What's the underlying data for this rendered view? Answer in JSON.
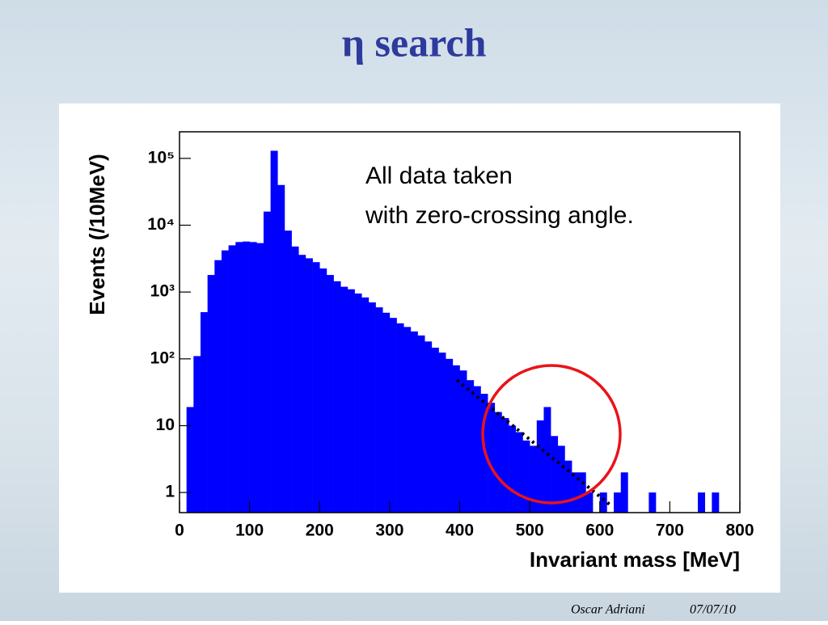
{
  "slide": {
    "title": "η search",
    "author": "Oscar Adriani",
    "date": "07/07/10"
  },
  "chart_data": {
    "type": "histogram",
    "x_label": "Invariant mass [MeV]",
    "y_label": "Events (/10MeV)",
    "annotation": [
      "All data taken",
      "with zero-crossing angle."
    ],
    "color": "#0000ff",
    "bins": [
      0,
      10,
      20,
      30,
      40,
      50,
      60,
      70,
      80,
      90,
      100,
      110,
      120,
      130,
      140,
      150,
      160,
      170,
      180,
      190,
      200,
      210,
      220,
      230,
      240,
      250,
      260,
      270,
      280,
      290,
      300,
      310,
      320,
      330,
      340,
      350,
      360,
      370,
      380,
      390,
      400,
      410,
      420,
      430,
      440,
      450,
      460,
      470,
      480,
      490,
      500,
      510,
      520,
      530,
      540,
      550,
      560,
      570,
      580,
      590,
      600,
      610,
      620,
      630,
      640,
      650,
      660,
      670,
      680,
      690,
      700,
      710,
      720,
      730,
      740,
      750,
      760,
      770,
      780,
      790,
      800
    ],
    "values": [
      0,
      19,
      110,
      500,
      1800,
      3000,
      4200,
      5000,
      5600,
      5700,
      5600,
      5400,
      16000,
      130000,
      40000,
      8300,
      4800,
      3600,
      3200,
      2800,
      2250,
      1800,
      1450,
      1200,
      1100,
      950,
      830,
      700,
      590,
      490,
      410,
      340,
      300,
      257,
      224,
      182,
      147,
      124,
      100,
      80,
      67,
      48,
      39,
      30,
      22,
      16,
      13,
      10,
      8,
      6,
      5,
      12,
      19,
      7,
      5,
      3,
      2,
      2,
      1,
      0,
      1,
      0,
      1,
      2,
      0,
      0,
      0,
      1,
      0,
      0,
      0,
      0,
      0,
      0,
      1,
      0,
      1,
      0,
      0,
      0
    ],
    "fit": {
      "x": [
        396,
        615
      ],
      "values": [
        48,
        0.65
      ],
      "color": "#000000"
    },
    "xlim": [
      0,
      800
    ],
    "xticks": [
      0,
      100,
      200,
      300,
      400,
      500,
      600,
      700,
      800
    ],
    "ylim": [
      0.5,
      250000
    ],
    "ylog": true,
    "yticks": [
      1,
      10,
      {
        "value": 100,
        "label": "10²"
      },
      {
        "value": 1000,
        "label": "10³"
      },
      {
        "value": 10000,
        "label": "10⁴"
      },
      {
        "value": 100000,
        "label": "10⁵"
      }
    ]
  }
}
